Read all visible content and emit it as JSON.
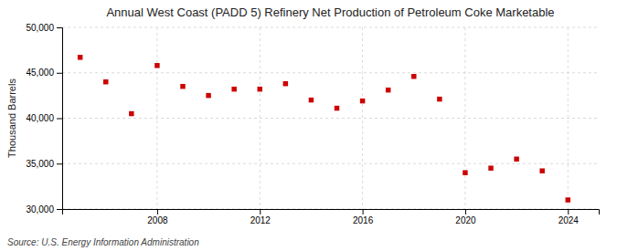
{
  "chart_data": {
    "type": "scatter",
    "title": "Annual West Coast (PADD 5) Refinery Net Production of Petroleum Coke Marketable",
    "ylabel": "Thousand Barrels",
    "source": "Source: U.S. Energy Information Administration",
    "x": [
      2005,
      2006,
      2007,
      2008,
      2009,
      2010,
      2011,
      2012,
      2013,
      2014,
      2015,
      2016,
      2017,
      2018,
      2019,
      2020,
      2021,
      2022,
      2023,
      2024
    ],
    "values": [
      46700,
      44000,
      40500,
      45800,
      43500,
      42500,
      43200,
      43200,
      43800,
      42000,
      41100,
      41900,
      43100,
      44600,
      42100,
      34000,
      34500,
      35500,
      34200,
      31000
    ],
    "color": "#cc0000",
    "marker": "square",
    "xlim": [
      2004.3,
      2025.2
    ],
    "xticks": [
      2008,
      2012,
      2016,
      2020,
      2024
    ],
    "ylim": [
      30000,
      50000
    ],
    "yticks": [
      {
        "value": 30000,
        "label": "30,000"
      },
      {
        "value": 35000,
        "label": "35,000"
      },
      {
        "value": 40000,
        "label": "40,000"
      },
      {
        "value": 45000,
        "label": "45,000"
      },
      {
        "value": 50000,
        "label": "50,000"
      }
    ],
    "grid": true
  }
}
